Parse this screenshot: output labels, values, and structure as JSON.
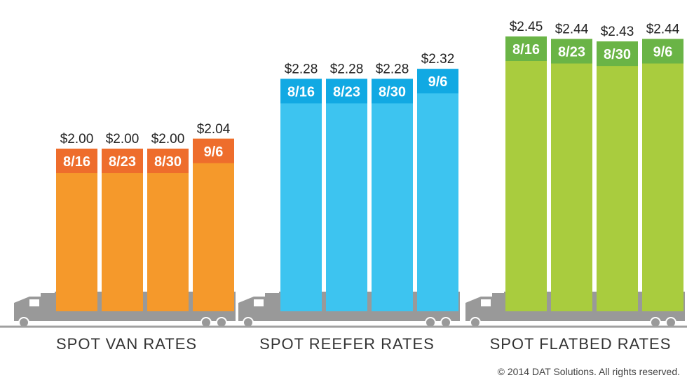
{
  "chart_data": {
    "type": "bar",
    "groups": [
      {
        "label": "SPOT VAN RATES",
        "colors": {
          "bar": "#f5992b",
          "band": "#ee6d2c"
        },
        "categories": [
          "8/16",
          "8/23",
          "8/30",
          "9/6"
        ],
        "values": [
          2.0,
          2.0,
          2.0,
          2.04
        ],
        "value_labels": [
          "$2.00",
          "$2.00",
          "$2.00",
          "$2.04"
        ]
      },
      {
        "label": "SPOT REEFER RATES",
        "colors": {
          "bar": "#3dc4f0",
          "band": "#11a9e3"
        },
        "categories": [
          "8/16",
          "8/23",
          "8/30",
          "9/6"
        ],
        "values": [
          2.28,
          2.28,
          2.28,
          2.32
        ],
        "value_labels": [
          "$2.28",
          "$2.28",
          "$2.28",
          "$2.32"
        ]
      },
      {
        "label": "SPOT FLATBED RATES",
        "colors": {
          "bar": "#a9cc3e",
          "band": "#6ab446"
        },
        "categories": [
          "8/16",
          "8/23",
          "8/30",
          "9/6"
        ],
        "values": [
          2.45,
          2.44,
          2.43,
          2.44
        ],
        "value_labels": [
          "$2.45",
          "$2.44",
          "$2.43",
          "$2.44"
        ]
      }
    ],
    "grid": false,
    "legend": "none"
  },
  "truck_color": "#999999",
  "copyright": "© 2014 DAT Solutions. All rights reserved."
}
